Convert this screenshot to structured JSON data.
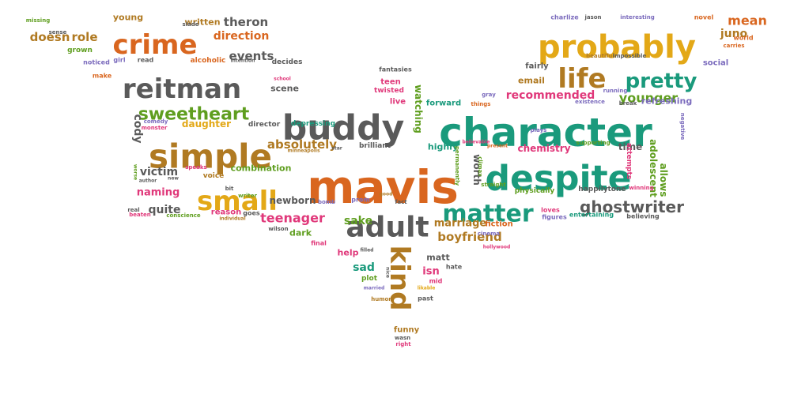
{
  "colors": {
    "background": "#ffffff",
    "orange": "#d9661f",
    "gold": "#e3a817",
    "teal": "#1a9a7c",
    "green": "#5f9e1f",
    "gray": "#5a5a5a",
    "brown": "#b07a22",
    "pink": "#e0387a",
    "purple": "#7b6bbd"
  },
  "words": [
    {
      "text": "mavis",
      "color": "orange"
    },
    {
      "text": "character",
      "color": "teal"
    },
    {
      "text": "despite",
      "color": "teal"
    },
    {
      "text": "buddy",
      "color": "gray"
    },
    {
      "text": "probably",
      "color": "gold"
    },
    {
      "text": "simple",
      "color": "brown"
    },
    {
      "text": "adult",
      "color": "gray"
    },
    {
      "text": "small",
      "color": "gold"
    },
    {
      "text": "reitman",
      "color": "gray"
    },
    {
      "text": "crime",
      "color": "orange"
    },
    {
      "text": "kind",
      "color": "brown"
    },
    {
      "text": "life",
      "color": "brown"
    },
    {
      "text": "matter",
      "color": "teal"
    },
    {
      "text": "pretty",
      "color": "teal"
    },
    {
      "text": "sweetheart",
      "color": "green"
    },
    {
      "text": "ghostwriter",
      "color": "gray"
    },
    {
      "text": "teenager",
      "color": "pink"
    },
    {
      "text": "absolutely",
      "color": "brown"
    },
    {
      "text": "boyfriend",
      "color": "brown"
    },
    {
      "text": "younger",
      "color": "green"
    },
    {
      "text": "recommended",
      "color": "pink"
    },
    {
      "text": "marriage",
      "color": "brown"
    },
    {
      "text": "watching",
      "color": "green"
    },
    {
      "text": "worth",
      "color": "gray"
    },
    {
      "text": "chemistry",
      "color": "pink"
    },
    {
      "text": "adolescent",
      "color": "green"
    },
    {
      "text": "direction",
      "color": "orange"
    },
    {
      "text": "theron",
      "color": "gray"
    },
    {
      "text": "doesn",
      "color": "brown"
    },
    {
      "text": "role",
      "color": "brown"
    },
    {
      "text": "events",
      "color": "gray"
    },
    {
      "text": "daughter",
      "color": "gold"
    },
    {
      "text": "cody",
      "color": "gray"
    },
    {
      "text": "victim",
      "color": "gray"
    },
    {
      "text": "naming",
      "color": "pink"
    },
    {
      "text": "quite",
      "color": "gray"
    },
    {
      "text": "newborn",
      "color": "gray"
    },
    {
      "text": "sake",
      "color": "green"
    },
    {
      "text": "sad",
      "color": "teal"
    },
    {
      "text": "isn",
      "color": "pink"
    },
    {
      "text": "matt",
      "color": "gray"
    },
    {
      "text": "help",
      "color": "pink"
    },
    {
      "text": "mean",
      "color": "orange"
    },
    {
      "text": "juno",
      "color": "brown"
    },
    {
      "text": "refreshing",
      "color": "purple"
    },
    {
      "text": "allows",
      "color": "green"
    },
    {
      "text": "time",
      "color": "gray"
    },
    {
      "text": "highly",
      "color": "teal"
    },
    {
      "text": "email",
      "color": "brown"
    },
    {
      "text": "fairly",
      "color": "gray"
    },
    {
      "text": "social",
      "color": "purple"
    },
    {
      "text": "written",
      "color": "brown"
    },
    {
      "text": "young",
      "color": "brown"
    },
    {
      "text": "scene",
      "color": "gray"
    },
    {
      "text": "depressing",
      "color": "teal"
    },
    {
      "text": "teen",
      "color": "pink"
    },
    {
      "text": "twisted",
      "color": "pink"
    },
    {
      "text": "live",
      "color": "pink"
    },
    {
      "text": "forward",
      "color": "teal"
    },
    {
      "text": "decides",
      "color": "gray"
    },
    {
      "text": "alcoholic",
      "color": "orange"
    },
    {
      "text": "combination",
      "color": "green"
    },
    {
      "text": "director",
      "color": "gray"
    },
    {
      "text": "reason",
      "color": "pink"
    },
    {
      "text": "dark",
      "color": "green"
    },
    {
      "text": "fiction",
      "color": "orange"
    },
    {
      "text": "brilliant",
      "color": "gray"
    },
    {
      "text": "physically",
      "color": "green"
    },
    {
      "text": "happily",
      "color": "gray"
    },
    {
      "text": "tone",
      "color": "gray"
    },
    {
      "text": "attempts",
      "color": "pink"
    },
    {
      "text": "plot",
      "color": "green"
    },
    {
      "text": "mid",
      "color": "pink"
    },
    {
      "text": "funny",
      "color": "brown"
    },
    {
      "text": "past",
      "color": "gray"
    },
    {
      "text": "hate",
      "color": "gray"
    },
    {
      "text": "final",
      "color": "pink"
    },
    {
      "text": "voice",
      "color": "brown"
    },
    {
      "text": "grown",
      "color": "green"
    },
    {
      "text": "noticed",
      "color": "purple"
    },
    {
      "text": "girl",
      "color": "purple"
    },
    {
      "text": "read",
      "color": "gray"
    },
    {
      "text": "make",
      "color": "orange"
    },
    {
      "text": "fantasies",
      "color": "gray"
    },
    {
      "text": "charlize",
      "color": "purple"
    },
    {
      "text": "jason",
      "color": "gray"
    },
    {
      "text": "interesting",
      "color": "purple"
    },
    {
      "text": "novel",
      "color": "orange"
    },
    {
      "text": "world",
      "color": "orange"
    },
    {
      "text": "carries",
      "color": "orange"
    },
    {
      "text": "beautiful",
      "color": "brown"
    },
    {
      "text": "impossible",
      "color": "gray"
    },
    {
      "text": "running",
      "color": "purple"
    },
    {
      "text": "existence",
      "color": "purple"
    },
    {
      "text": "break",
      "color": "gray"
    },
    {
      "text": "negative",
      "color": "purple"
    },
    {
      "text": "missing",
      "color": "green"
    },
    {
      "text": "sense",
      "color": "gray"
    },
    {
      "text": "slade",
      "color": "gray"
    },
    {
      "text": "intention",
      "color": "gray"
    },
    {
      "text": "school",
      "color": "pink"
    },
    {
      "text": "comedy",
      "color": "purple"
    },
    {
      "text": "monster",
      "color": "pink"
    },
    {
      "text": "minneapolis",
      "color": "brown"
    },
    {
      "text": "star",
      "color": "gray"
    },
    {
      "text": "believable",
      "color": "pink"
    },
    {
      "text": "permanently",
      "color": "green"
    },
    {
      "text": "climax",
      "color": "green"
    },
    {
      "text": "straight",
      "color": "green"
    },
    {
      "text": "present",
      "color": "orange"
    },
    {
      "text": "plays",
      "color": "purple"
    },
    {
      "text": "supporting",
      "color": "green"
    },
    {
      "text": "gray",
      "color": "purple"
    },
    {
      "text": "things",
      "color": "orange"
    },
    {
      "text": "winning",
      "color": "pink"
    },
    {
      "text": "speaks",
      "color": "pink"
    },
    {
      "text": "worse",
      "color": "green"
    },
    {
      "text": "author",
      "color": "gray"
    },
    {
      "text": "writer",
      "color": "green"
    },
    {
      "text": "bit",
      "color": "gray"
    },
    {
      "text": "bomb",
      "color": "purple"
    },
    {
      "text": "prom",
      "color": "purple"
    },
    {
      "text": "fact",
      "color": "gray"
    },
    {
      "text": "good",
      "color": "brown"
    },
    {
      "text": "real",
      "color": "gray"
    },
    {
      "text": "beaten",
      "color": "pink"
    },
    {
      "text": "conscience",
      "color": "green"
    },
    {
      "text": "individual",
      "color": "brown"
    },
    {
      "text": "goes",
      "color": "gray"
    },
    {
      "text": "wilson",
      "color": "gray"
    },
    {
      "text": "filled",
      "color": "gray"
    },
    {
      "text": "loves",
      "color": "pink"
    },
    {
      "text": "figures",
      "color": "purple"
    },
    {
      "text": "entertaining",
      "color": "teal"
    },
    {
      "text": "believing",
      "color": "gray"
    },
    {
      "text": "hollywood",
      "color": "pink"
    },
    {
      "text": "cinema",
      "color": "purple"
    },
    {
      "text": "nice",
      "color": "gray"
    },
    {
      "text": "married",
      "color": "purple"
    },
    {
      "text": "likable",
      "color": "gold"
    },
    {
      "text": "humor",
      "color": "brown"
    },
    {
      "text": "wasn",
      "color": "gray"
    },
    {
      "text": "right",
      "color": "pink"
    },
    {
      "text": "new",
      "color": "gray"
    }
  ]
}
